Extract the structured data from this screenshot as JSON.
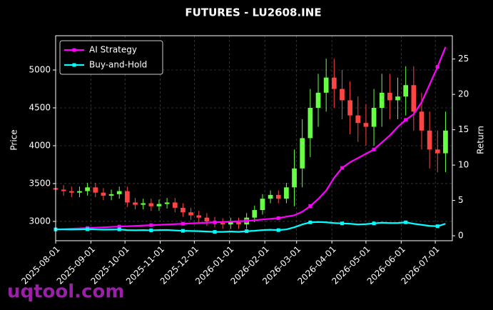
{
  "chart_data": {
    "type": "candlestick",
    "title": "FUTURES - LU2608.INE",
    "y_label": "Price",
    "y2_label": "Return",
    "x": [
      "2025-08-01",
      "2025-08-08",
      "2025-08-15",
      "2025-08-22",
      "2025-08-29",
      "2025-09-05",
      "2025-09-12",
      "2025-09-19",
      "2025-09-26",
      "2025-10-03",
      "2025-10-10",
      "2025-10-17",
      "2025-10-24",
      "2025-10-31",
      "2025-11-07",
      "2025-11-14",
      "2025-11-21",
      "2025-11-28",
      "2025-12-05",
      "2025-12-12",
      "2025-12-19",
      "2025-12-26",
      "2026-01-02",
      "2026-01-09",
      "2026-01-16",
      "2026-01-23",
      "2026-01-30",
      "2026-02-06",
      "2026-02-13",
      "2026-02-20",
      "2026-02-27",
      "2026-03-06",
      "2026-03-13",
      "2026-03-20",
      "2026-03-27",
      "2026-04-03",
      "2026-04-10",
      "2026-04-17",
      "2026-04-24",
      "2026-05-01",
      "2026-05-08",
      "2026-05-15",
      "2026-05-22",
      "2026-05-29",
      "2026-06-05",
      "2026-06-12",
      "2026-06-19",
      "2026-06-26",
      "2026-07-03",
      "2026-07-10"
    ],
    "open": [
      3440,
      3420,
      3400,
      3380,
      3400,
      3450,
      3380,
      3340,
      3360,
      3400,
      3250,
      3220,
      3240,
      3200,
      3230,
      3250,
      3180,
      3120,
      3080,
      3050,
      3000,
      2980,
      2960,
      2990,
      2960,
      3050,
      3150,
      3300,
      3350,
      3300,
      3450,
      3700,
      4100,
      4500,
      4700,
      4900,
      4750,
      4600,
      4400,
      4300,
      4250,
      4500,
      4700,
      4600,
      4650,
      4800,
      4450,
      4200,
      3950,
      3900
    ],
    "high": [
      3500,
      3480,
      3460,
      3460,
      3510,
      3510,
      3440,
      3420,
      3460,
      3460,
      3310,
      3300,
      3300,
      3290,
      3310,
      3310,
      3240,
      3180,
      3140,
      3110,
      3060,
      3040,
      3050,
      3050,
      3110,
      3210,
      3360,
      3410,
      3410,
      3510,
      3950,
      4350,
      4750,
      4950,
      5150,
      5150,
      5000,
      4850,
      4650,
      4550,
      4750,
      4950,
      4950,
      4900,
      5050,
      5050,
      4700,
      4450,
      4200,
      4450
    ],
    "low": [
      3360,
      3340,
      3320,
      3320,
      3340,
      3320,
      3280,
      3280,
      3300,
      3190,
      3160,
      3160,
      3140,
      3140,
      3170,
      3120,
      3060,
      3020,
      2990,
      2940,
      2920,
      2900,
      2900,
      2900,
      2900,
      2990,
      3090,
      3240,
      3240,
      3240,
      3200,
      3450,
      3850,
      4250,
      4450,
      4500,
      4350,
      4150,
      4050,
      4000,
      4000,
      4250,
      4350,
      4350,
      4400,
      4200,
      3950,
      3700,
      3650,
      3650
    ],
    "close": [
      3420,
      3400,
      3380,
      3400,
      3450,
      3380,
      3340,
      3360,
      3400,
      3250,
      3220,
      3240,
      3200,
      3230,
      3250,
      3180,
      3120,
      3080,
      3050,
      3000,
      2980,
      2960,
      2990,
      2960,
      3050,
      3150,
      3300,
      3350,
      3300,
      3450,
      3700,
      4100,
      4500,
      4700,
      4900,
      4750,
      4600,
      4400,
      4300,
      4250,
      4500,
      4700,
      4600,
      4650,
      4800,
      4450,
      4200,
      3950,
      3900,
      4200
    ],
    "up_color": "#66ff44",
    "down_color": "#ff4444",
    "series": [
      {
        "name": "AI Strategy",
        "color": "#ff00ff",
        "axis": "y2",
        "values": [
          0.9,
          0.95,
          1.0,
          1.05,
          1.1,
          1.15,
          1.2,
          1.25,
          1.3,
          1.35,
          1.4,
          1.45,
          1.5,
          1.55,
          1.6,
          1.65,
          1.7,
          1.75,
          1.8,
          1.85,
          1.9,
          1.95,
          2.0,
          2.05,
          2.1,
          2.2,
          2.3,
          2.4,
          2.5,
          2.7,
          2.9,
          3.4,
          4.2,
          5.2,
          6.4,
          8.2,
          9.6,
          10.4,
          11.0,
          11.6,
          12.2,
          13.2,
          14.2,
          15.4,
          16.4,
          17.2,
          18.9,
          21.4,
          23.9,
          26.7
        ]
      },
      {
        "name": "Buy-and-Hold",
        "color": "#00ffff",
        "axis": "y2",
        "values": [
          0.9,
          0.9,
          0.88,
          0.9,
          0.92,
          0.9,
          0.87,
          0.88,
          0.9,
          0.8,
          0.78,
          0.8,
          0.77,
          0.8,
          0.82,
          0.75,
          0.7,
          0.68,
          0.65,
          0.6,
          0.55,
          0.55,
          0.6,
          0.55,
          0.65,
          0.7,
          0.8,
          0.85,
          0.8,
          0.9,
          1.2,
          1.6,
          1.9,
          1.95,
          1.9,
          1.8,
          1.75,
          1.7,
          1.6,
          1.65,
          1.75,
          1.85,
          1.8,
          1.8,
          1.9,
          1.7,
          1.55,
          1.4,
          1.35,
          1.7
        ]
      }
    ],
    "xlim": [
      "2025-08-01",
      "2026-07-16"
    ],
    "xticks": [
      "2025-08-01",
      "2025-09-01",
      "2025-10-01",
      "2025-11-01",
      "2025-12-01",
      "2026-01-01",
      "2026-02-01",
      "2026-03-01",
      "2026-04-01",
      "2026-05-01",
      "2026-06-01",
      "2026-07-01"
    ],
    "ylim": [
      2745,
      5453
    ],
    "yticks": [
      3000,
      3500,
      4000,
      4500,
      5000
    ],
    "y2lim": [
      -0.7,
      28.3
    ],
    "y2ticks": [
      0,
      5,
      10,
      15,
      20,
      25
    ],
    "grid": true,
    "legend": "upper left"
  },
  "watermark": "uqtool.com"
}
